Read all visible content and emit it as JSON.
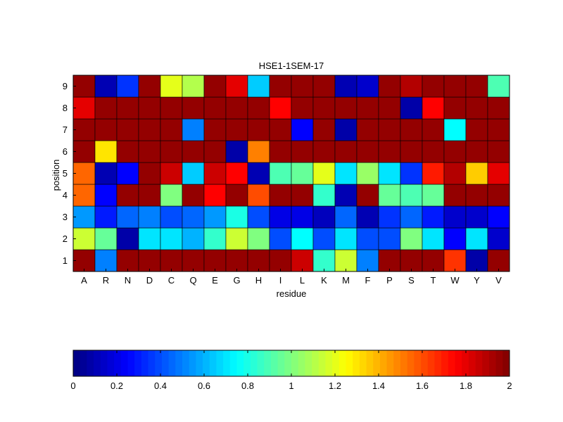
{
  "chart_data": {
    "type": "heatmap",
    "title": "HSE1-1SEM-17",
    "xlabel": "residue",
    "ylabel": "position",
    "x_categories": [
      "A",
      "R",
      "N",
      "D",
      "C",
      "Q",
      "E",
      "G",
      "H",
      "I",
      "L",
      "K",
      "M",
      "F",
      "P",
      "S",
      "T",
      "W",
      "Y",
      "V"
    ],
    "y_categories": [
      "1",
      "2",
      "3",
      "4",
      "5",
      "6",
      "7",
      "8",
      "9"
    ],
    "values": [
      [
        1.96,
        0.5,
        1.96,
        1.96,
        1.96,
        1.96,
        1.96,
        1.96,
        1.96,
        1.96,
        1.85,
        0.85,
        1.15,
        0.5,
        1.96,
        1.96,
        1.96,
        1.65,
        0.08,
        1.96
      ],
      [
        1.15,
        0.95,
        0.08,
        0.7,
        0.7,
        0.6,
        0.85,
        1.15,
        1.0,
        0.4,
        0.75,
        0.4,
        0.7,
        0.4,
        0.4,
        1.0,
        0.7,
        0.25,
        0.7,
        0.15
      ],
      [
        0.55,
        0.3,
        0.45,
        0.5,
        0.4,
        0.45,
        0.55,
        0.8,
        0.4,
        0.2,
        0.2,
        0.12,
        0.45,
        0.1,
        0.35,
        0.45,
        0.3,
        0.15,
        0.15,
        0.25
      ],
      [
        1.55,
        0.25,
        1.96,
        1.96,
        1.0,
        1.96,
        1.75,
        1.96,
        1.6,
        1.96,
        1.96,
        0.85,
        0.1,
        1.96,
        0.95,
        0.9,
        0.95,
        1.96,
        1.96,
        1.96
      ],
      [
        1.55,
        0.1,
        0.25,
        1.96,
        1.85,
        0.65,
        1.85,
        1.75,
        0.1,
        0.9,
        0.95,
        1.2,
        0.7,
        1.05,
        0.7,
        0.35,
        1.7,
        1.9,
        1.35,
        1.8
      ],
      [
        1.96,
        1.3,
        1.96,
        1.96,
        1.96,
        1.96,
        1.96,
        0.08,
        1.5,
        1.96,
        1.96,
        1.96,
        1.96,
        1.96,
        1.96,
        1.96,
        1.96,
        1.96,
        1.96,
        1.96
      ],
      [
        1.96,
        1.96,
        1.96,
        1.96,
        1.96,
        0.5,
        1.96,
        1.96,
        1.96,
        1.96,
        0.25,
        1.96,
        0.08,
        1.96,
        1.96,
        1.96,
        1.96,
        0.75,
        1.96,
        1.96
      ],
      [
        1.8,
        1.96,
        1.96,
        1.96,
        1.96,
        1.96,
        1.96,
        1.96,
        1.96,
        1.75,
        1.96,
        1.96,
        1.96,
        1.96,
        1.96,
        0.08,
        1.75,
        1.96,
        1.96,
        1.96
      ],
      [
        1.96,
        0.1,
        0.35,
        1.96,
        1.2,
        1.1,
        1.96,
        1.8,
        0.65,
        1.96,
        1.96,
        1.96,
        0.1,
        0.15,
        1.96,
        1.9,
        1.96,
        1.96,
        1.96,
        0.9
      ]
    ],
    "colorbar": {
      "min": 0,
      "max": 2,
      "ticks": [
        0,
        0.2,
        0.4,
        0.6,
        0.8,
        1,
        1.2,
        1.4,
        1.6,
        1.8,
        2
      ],
      "tick_labels": [
        "0",
        "0.2",
        "0.4",
        "0.6",
        "0.8",
        "1",
        "1.2",
        "1.4",
        "1.6",
        "1.8",
        "2"
      ],
      "colormap": "jet",
      "placement": "bottom"
    },
    "grid": true
  }
}
